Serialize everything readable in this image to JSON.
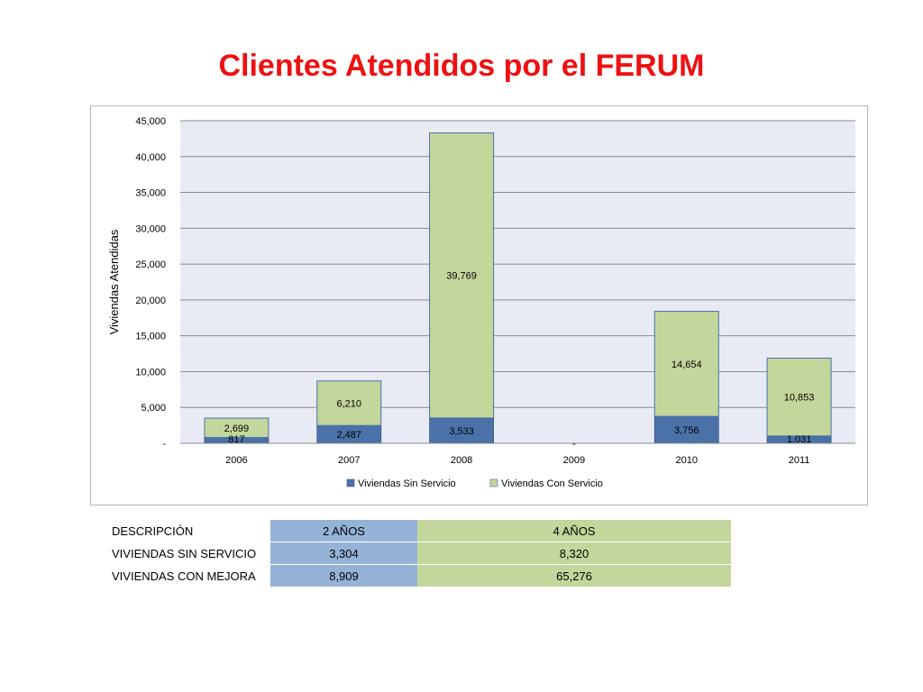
{
  "page": {
    "title": "Clientes Atendidos por el FERUM"
  },
  "chart_data": {
    "type": "bar",
    "stacked": true,
    "categories": [
      "2006",
      "2007",
      "2008",
      "2009",
      "2010",
      "2011"
    ],
    "series": [
      {
        "name": "Viviendas Sin Servicio",
        "color": "#4a72a8",
        "values": [
          817,
          2487,
          3533,
          0,
          3756,
          1031
        ],
        "labels": [
          "817",
          "2,487",
          "3,533",
          "-",
          "3,756",
          "1,031"
        ]
      },
      {
        "name": "Viviendas Con Servicio",
        "color": "#c3d69b",
        "values": [
          2699,
          6210,
          39769,
          0,
          14654,
          10853
        ],
        "labels": [
          "2,699",
          "6,210",
          "39,769",
          "",
          "14,654",
          "10,853"
        ]
      }
    ],
    "ylabel": "Viviendas Atendidas",
    "xlabel": "",
    "ylim": [
      0,
      45000
    ],
    "y_ticks": [
      0,
      5000,
      10000,
      15000,
      20000,
      25000,
      30000,
      35000,
      40000,
      45000
    ],
    "y_tick_labels": [
      "-",
      "5,000",
      "10,000",
      "15,000",
      "20,000",
      "25,000",
      "30,000",
      "35,000",
      "40,000",
      "45,000"
    ],
    "grid": true,
    "legend_position": "bottom",
    "plot_background": "#e8eaf4"
  },
  "table": {
    "header": {
      "desc": "DESCRIPCIÓN",
      "c2": "2 AÑOS",
      "c4": "4 AÑOS"
    },
    "rows": [
      {
        "desc": "VIVIENDAS SIN SERVICIO",
        "c2": "3,304",
        "c4": "8,320"
      },
      {
        "desc": "VIVIENDAS CON MEJORA",
        "c2": "8,909",
        "c4": "65,276"
      }
    ]
  }
}
